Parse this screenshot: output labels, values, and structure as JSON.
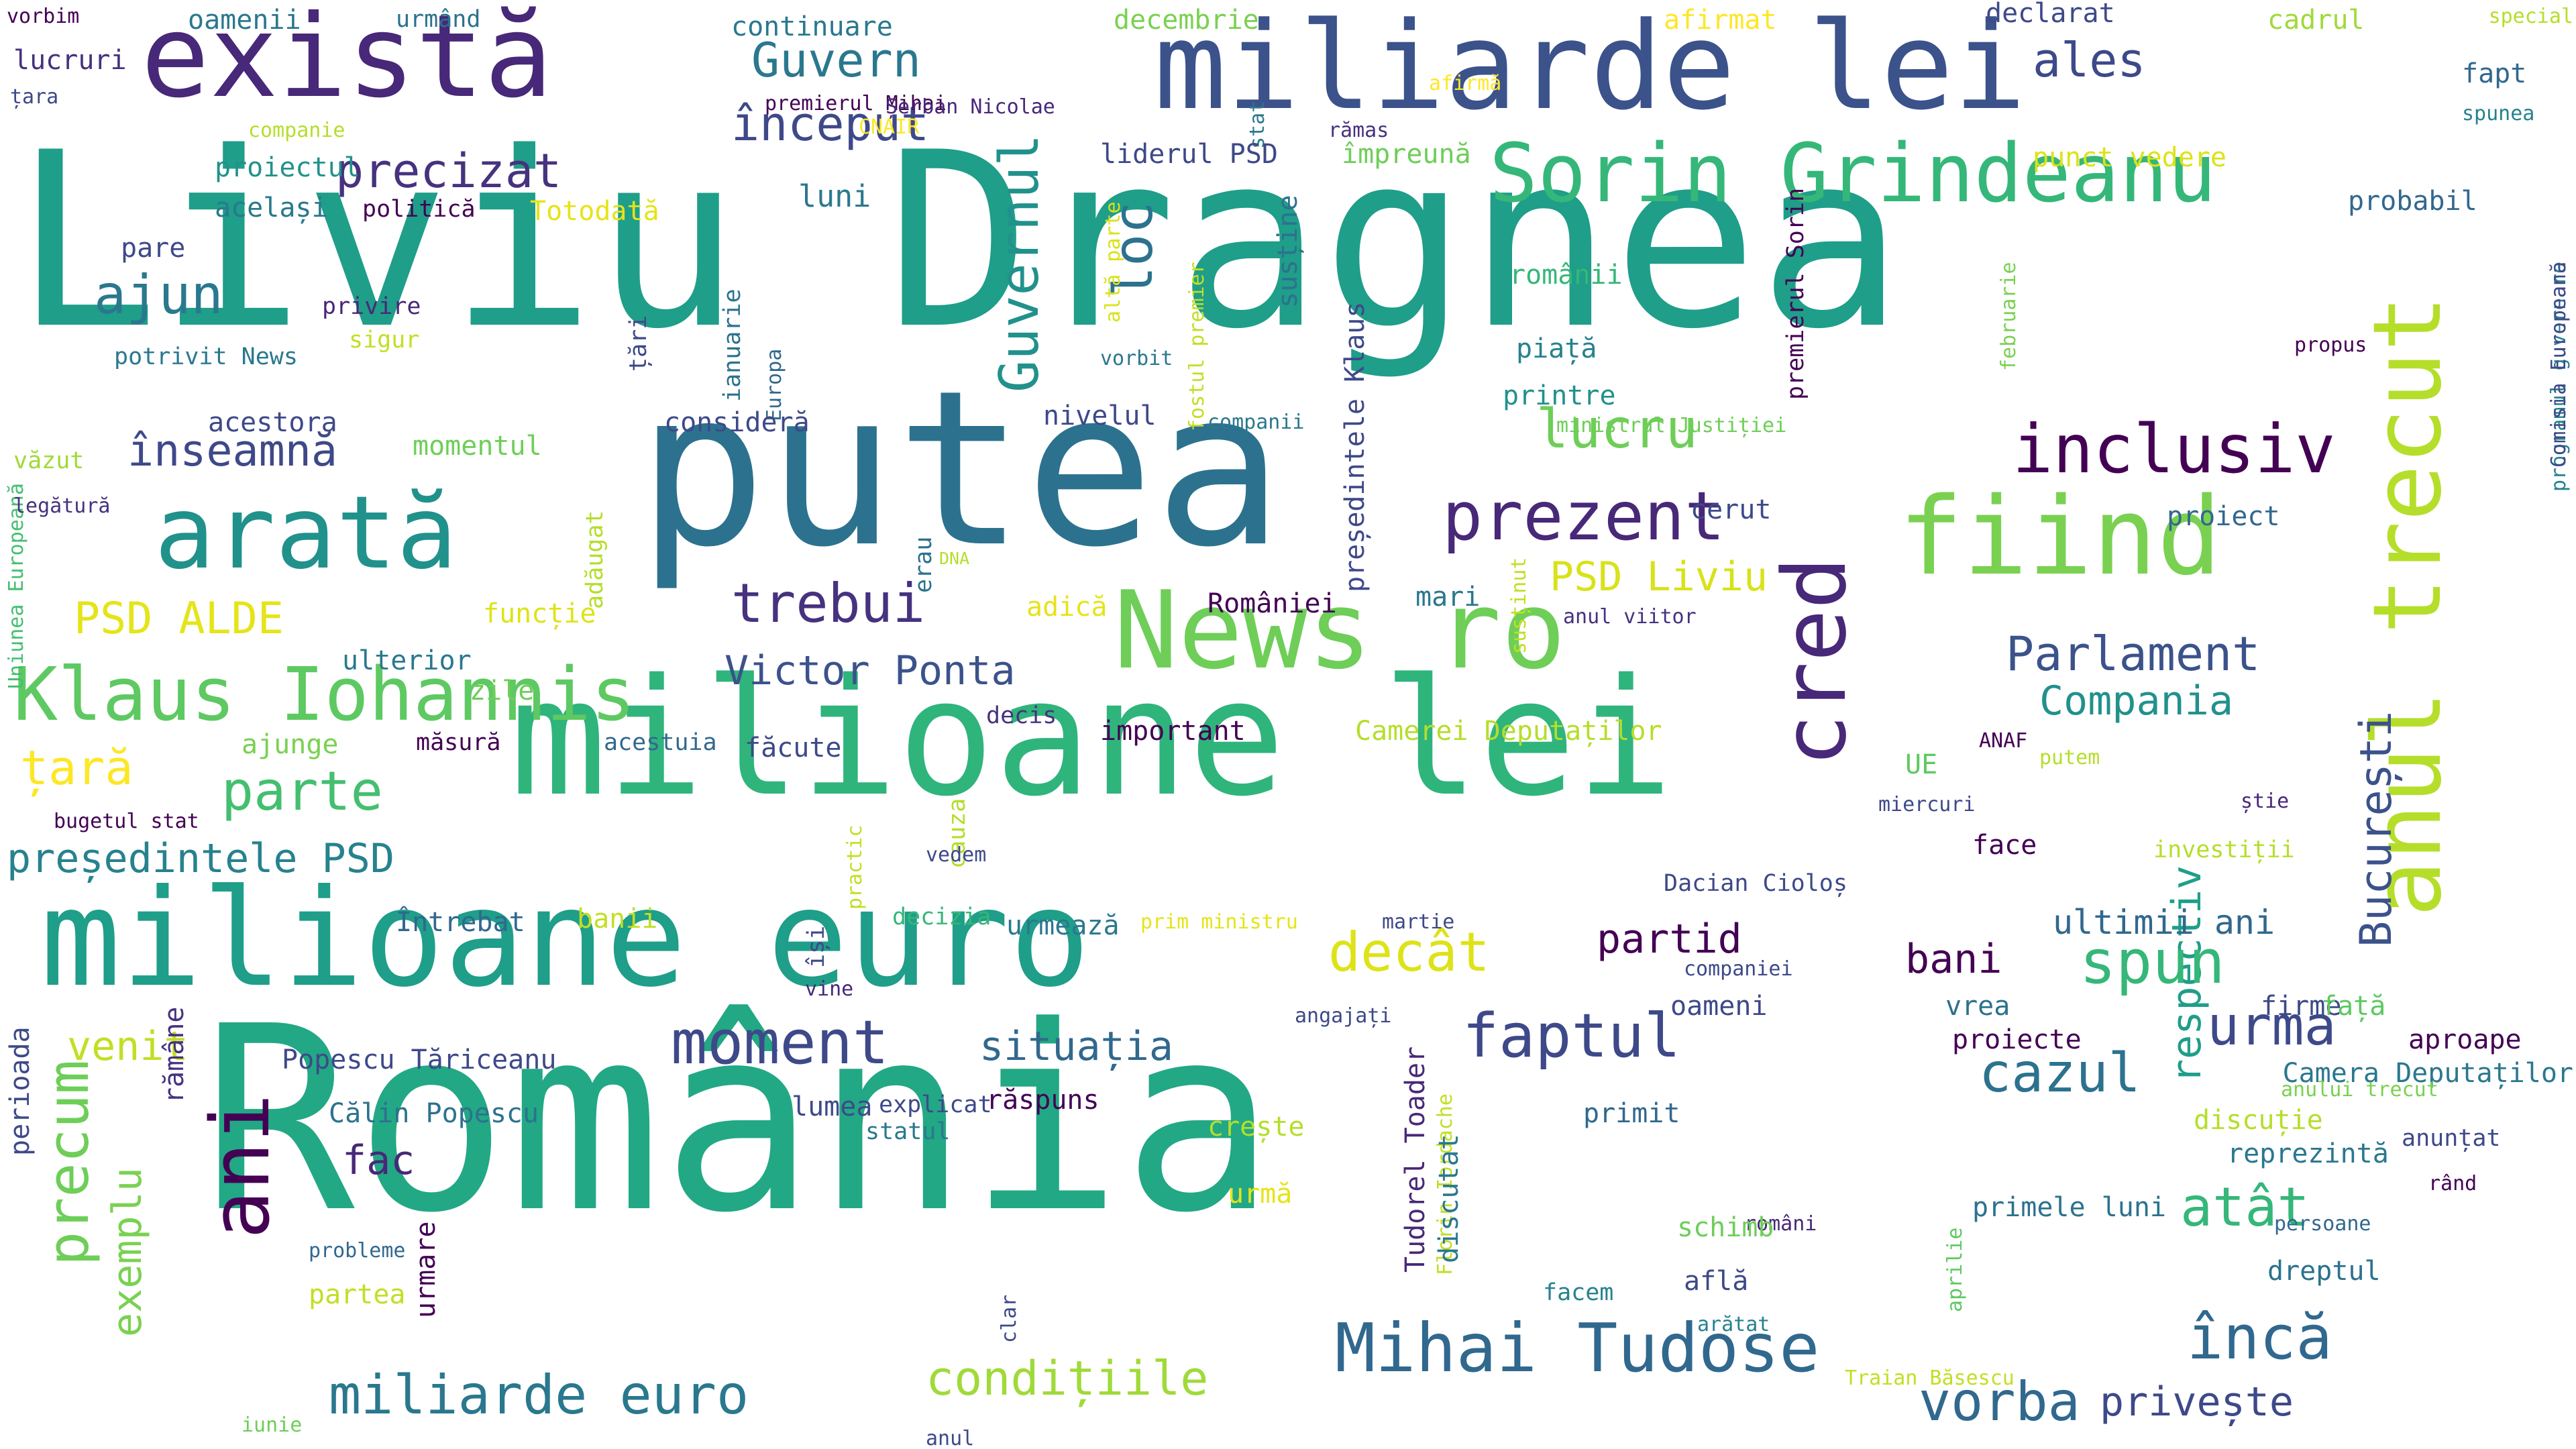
{
  "palette": [
    "#440154",
    "#482878",
    "#3e4989",
    "#31688e",
    "#26828e",
    "#1f9e89",
    "#35b779",
    "#6ece58",
    "#b5de2b",
    "#fde725"
  ],
  "words": [
    {
      "text": "Liviu Dragnea",
      "color": "#1f9e89"
    },
    {
      "text": "România",
      "color": "#22a884"
    },
    {
      "text": "milioane lei",
      "color": "#2fb47c"
    },
    {
      "text": "putea",
      "color": "#2c728e"
    },
    {
      "text": "miliarde lei",
      "color": "#3b528b"
    },
    {
      "text": "News ro",
      "color": "#6ece58"
    },
    {
      "text": "există",
      "color": "#482878"
    },
    {
      "text": "milioane euro",
      "color": "#1f9e89"
    },
    {
      "text": "arată",
      "color": "#21918c"
    },
    {
      "text": "anul trecut",
      "color": "#b5de2b"
    },
    {
      "text": "ani",
      "color": "#440154"
    },
    {
      "text": "fiind",
      "color": "#7ad151"
    },
    {
      "text": "cred",
      "color": "#482878"
    },
    {
      "text": "Sorin Grindeanu",
      "color": "#35b779"
    },
    {
      "text": "Klaus Iohannis",
      "color": "#5ec962"
    },
    {
      "text": "Mihai Tudose",
      "color": "#31688e"
    },
    {
      "text": "miliarde euro",
      "color": "#2a788e"
    },
    {
      "text": "condițiile",
      "color": "#a0da39"
    },
    {
      "text": "moment",
      "color": "#3e4989"
    },
    {
      "text": "precum",
      "color": "#6ece58"
    },
    {
      "text": "inclusiv",
      "color": "#440154"
    },
    {
      "text": "București",
      "color": "#3b528b"
    },
    {
      "text": "respectiv",
      "color": "#1f9e89"
    },
    {
      "text": "atât",
      "color": "#35b779"
    },
    {
      "text": "prezent",
      "color": "#482878"
    },
    {
      "text": "Guvernul",
      "color": "#21918c"
    },
    {
      "text": "faptul",
      "color": "#3e4989"
    },
    {
      "text": "spun",
      "color": "#35b779"
    },
    {
      "text": "încă",
      "color": "#31688e"
    },
    {
      "text": "urma",
      "color": "#3e4989"
    },
    {
      "text": "trebui",
      "color": "#46327e"
    },
    {
      "text": "parte",
      "color": "#44bf70"
    },
    {
      "text": "precizat",
      "color": "#46327e"
    },
    {
      "text": "ajun",
      "color": "#2a788e"
    },
    {
      "text": "înseamnă",
      "color": "#3e4989"
    },
    {
      "text": "loc",
      "color": "#2c728e"
    },
    {
      "text": "decât",
      "color": "#dde318"
    },
    {
      "text": "Parlament",
      "color": "#3b528b"
    },
    {
      "text": "Compania",
      "color": "#21918c"
    },
    {
      "text": "cazul",
      "color": "#2c728e"
    },
    {
      "text": "lucru",
      "color": "#6ece58"
    },
    {
      "text": "început",
      "color": "#3e4989"
    },
    {
      "text": "Guvern",
      "color": "#2a788e"
    },
    {
      "text": "ales",
      "color": "#3e4989"
    },
    {
      "text": "vorba",
      "color": "#31688e"
    },
    {
      "text": "privește",
      "color": "#3e4989"
    },
    {
      "text": "exemplu",
      "color": "#7ad151"
    },
    {
      "text": "venit",
      "color": "#c2df23"
    },
    {
      "text": "țară",
      "color": "#fde725"
    },
    {
      "text": "PSD ALDE",
      "color": "#e5e419"
    },
    {
      "text": "Victor Ponta",
      "color": "#3b528b"
    },
    {
      "text": "PSD Liviu",
      "color": "#d8e219"
    },
    {
      "text": "situația",
      "color": "#31688e"
    },
    {
      "text": "partid",
      "color": "#440154"
    },
    {
      "text": "bani",
      "color": "#440154"
    },
    {
      "text": "ultimii ani",
      "color": "#31688e"
    },
    {
      "text": "președintele PSD",
      "color": "#26828e"
    },
    {
      "text": "fac",
      "color": "#482878"
    },
    {
      "text": "luni",
      "color": "#2a788e"
    },
    {
      "text": "continuare",
      "color": "#2a788e"
    },
    {
      "text": "decembrie",
      "color": "#7ad151"
    },
    {
      "text": "afirmat",
      "color": "#fde725"
    },
    {
      "text": "declarat",
      "color": "#3e4989"
    },
    {
      "text": "cadrul",
      "color": "#a0da39"
    },
    {
      "text": "special",
      "color": "#b5de2b"
    },
    {
      "text": "fapt",
      "color": "#31688e"
    },
    {
      "text": "spunea",
      "color": "#26828e"
    },
    {
      "text": "oamenii",
      "color": "#2a788e"
    },
    {
      "text": "urmând",
      "color": "#2c728e"
    },
    {
      "text": "lucruri",
      "color": "#46327e"
    },
    {
      "text": "țara",
      "color": "#3e4989"
    },
    {
      "text": "companie",
      "color": "#b5de2b"
    },
    {
      "text": "premierul Mihai",
      "color": "#440154"
    },
    {
      "text": "Șerban Nicolae",
      "color": "#482878"
    },
    {
      "text": "CNAIR",
      "color": "#fde725"
    },
    {
      "text": "afirmă",
      "color": "#fde725"
    },
    {
      "text": "rămas",
      "color": "#46327e"
    },
    {
      "text": "stat",
      "color": "#2a788e"
    },
    {
      "text": "proiectul",
      "color": "#21918c"
    },
    {
      "text": "același",
      "color": "#2a788e"
    },
    {
      "text": "politică",
      "color": "#440154"
    },
    {
      "text": "Totodată",
      "color": "#e5e419"
    },
    {
      "text": "liderul PSD",
      "color": "#3e4989"
    },
    {
      "text": "împreună",
      "color": "#6ece58"
    },
    {
      "text": "punct vedere",
      "color": "#dde318"
    },
    {
      "text": "probabil",
      "color": "#31688e"
    },
    {
      "text": "pare",
      "color": "#3e4989"
    },
    {
      "text": "privire",
      "color": "#482878"
    },
    {
      "text": "sigur",
      "color": "#c2df23"
    },
    {
      "text": "potrivit News",
      "color": "#2a788e"
    },
    {
      "text": "ianuarie",
      "color": "#2c728e"
    },
    {
      "text": "Europa",
      "color": "#31688e"
    },
    {
      "text": "țări",
      "color": "#3e4989"
    },
    {
      "text": "altă parte",
      "color": "#d8e219"
    },
    {
      "text": "vorbit",
      "color": "#2a788e"
    },
    {
      "text": "fostul premier",
      "color": "#c2df23"
    },
    {
      "text": "susține",
      "color": "#2c728e"
    },
    {
      "text": "președintele Klaus",
      "color": "#3e4989"
    },
    {
      "text": "premierul Sorin",
      "color": "#440154"
    },
    {
      "text": "românii",
      "color": "#35b779"
    },
    {
      "text": "piață",
      "color": "#26828e"
    },
    {
      "text": "printre",
      "color": "#21918c"
    },
    {
      "text": "februarie",
      "color": "#7ad151"
    },
    {
      "text": "propus",
      "color": "#440154"
    },
    {
      "text": "Uniunea Europeană",
      "color": "#44bf70"
    },
    {
      "text": "acestora",
      "color": "#3e4989"
    },
    {
      "text": "văzut",
      "color": "#a0da39"
    },
    {
      "text": "legătură",
      "color": "#46327e"
    },
    {
      "text": "momentul",
      "color": "#6ece58"
    },
    {
      "text": "adăugat",
      "color": "#b5de2b"
    },
    {
      "text": "consideră",
      "color": "#3e4989"
    },
    {
      "text": "nivelul",
      "color": "#3e4989"
    },
    {
      "text": "companii",
      "color": "#2a788e"
    },
    {
      "text": "ministrul Justiției",
      "color": "#6ece58"
    },
    {
      "text": "cerut",
      "color": "#3e4989"
    },
    {
      "text": "proiect",
      "color": "#31688e"
    },
    {
      "text": "programul guvernare",
      "color": "#26828e"
    },
    {
      "text": "Comisia Europeană",
      "color": "#3e4989"
    },
    {
      "text": "erau",
      "color": "#2c728e"
    },
    {
      "text": "DNA",
      "color": "#b5de2b"
    },
    {
      "text": "adică",
      "color": "#e5e419"
    },
    {
      "text": "României",
      "color": "#440154"
    },
    {
      "text": "mari",
      "color": "#2a788e"
    },
    {
      "text": "susținut",
      "color": "#c2df23"
    },
    {
      "text": "anul viitor",
      "color": "#46327e"
    },
    {
      "text": "funcție",
      "color": "#dde318"
    },
    {
      "text": "ulterior",
      "color": "#2a788e"
    },
    {
      "text": "zile",
      "color": "#6ece58"
    },
    {
      "text": "ajunge",
      "color": "#7ad151"
    },
    {
      "text": "măsură",
      "color": "#440154"
    },
    {
      "text": "acestuia",
      "color": "#31688e"
    },
    {
      "text": "decis",
      "color": "#46327e"
    },
    {
      "text": "făcute",
      "color": "#3e4989"
    },
    {
      "text": "important",
      "color": "#440154"
    },
    {
      "text": "Camerei Deputaților",
      "color": "#b5de2b"
    },
    {
      "text": "ANAF",
      "color": "#440154"
    },
    {
      "text": "UE",
      "color": "#5ec962"
    },
    {
      "text": "putem",
      "color": "#b5de2b"
    },
    {
      "text": "bugetul stat",
      "color": "#440154"
    },
    {
      "text": "practic",
      "color": "#c2df23"
    },
    {
      "text": "cauza",
      "color": "#b5de2b"
    },
    {
      "text": "miercuri",
      "color": "#3e4989"
    },
    {
      "text": "face",
      "color": "#440154"
    },
    {
      "text": "știe",
      "color": "#482878"
    },
    {
      "text": "investiții",
      "color": "#b5de2b"
    },
    {
      "text": "vedem",
      "color": "#3e4989"
    },
    {
      "text": "Dacian Cioloș",
      "color": "#3e4989"
    },
    {
      "text": "Întrebat",
      "color": "#31688e"
    },
    {
      "text": "banii",
      "color": "#c2df23"
    },
    {
      "text": "decizia",
      "color": "#35b779"
    },
    {
      "text": "urmează",
      "color": "#2a788e"
    },
    {
      "text": "prim ministru",
      "color": "#e5e419"
    },
    {
      "text": "martie",
      "color": "#3e4989"
    },
    {
      "text": "își",
      "color": "#3e4989"
    },
    {
      "text": "vine",
      "color": "#482878"
    },
    {
      "text": "companiei",
      "color": "#3e4989"
    },
    {
      "text": "oameni",
      "color": "#3e4989"
    },
    {
      "text": "vrea",
      "color": "#2c728e"
    },
    {
      "text": "firme",
      "color": "#3e4989"
    },
    {
      "text": "față",
      "color": "#5ec962"
    },
    {
      "text": "angajați",
      "color": "#3e4989"
    },
    {
      "text": "proiecte",
      "color": "#440154"
    },
    {
      "text": "aproape",
      "color": "#440154"
    },
    {
      "text": "Camera Deputaților",
      "color": "#2a788e"
    },
    {
      "text": "perioada",
      "color": "#3e4989"
    },
    {
      "text": "rămâne",
      "color": "#46327e"
    },
    {
      "text": "Popescu Tăriceanu",
      "color": "#3e4989"
    },
    {
      "text": "Călin Popescu",
      "color": "#2c728e"
    },
    {
      "text": "răspuns",
      "color": "#440154"
    },
    {
      "text": "explicat",
      "color": "#3e4989"
    },
    {
      "text": "lumea",
      "color": "#3e4989"
    },
    {
      "text": "statul",
      "color": "#2a788e"
    },
    {
      "text": "crește",
      "color": "#b5de2b"
    },
    {
      "text": "Tudorel Toader",
      "color": "#482878"
    },
    {
      "text": "Florin Iordache",
      "color": "#c2df23"
    },
    {
      "text": "discutat",
      "color": "#2a788e"
    },
    {
      "text": "primit",
      "color": "#31688e"
    },
    {
      "text": "anului trecut",
      "color": "#7ad151"
    },
    {
      "text": "discuție",
      "color": "#b5de2b"
    },
    {
      "text": "reprezintă",
      "color": "#2a788e"
    },
    {
      "text": "anunțat",
      "color": "#3e4989"
    },
    {
      "text": "rând",
      "color": "#440154"
    },
    {
      "text": "dreptul",
      "color": "#2c728e"
    },
    {
      "text": "persoane",
      "color": "#31688e"
    },
    {
      "text": "aprilie",
      "color": "#5ec962"
    },
    {
      "text": "primele luni",
      "color": "#2c728e"
    },
    {
      "text": "români",
      "color": "#482878"
    },
    {
      "text": "urmă",
      "color": "#e5e419"
    },
    {
      "text": "probleme",
      "color": "#31688e"
    },
    {
      "text": "urmare",
      "color": "#440154"
    },
    {
      "text": "partea",
      "color": "#c2df23"
    },
    {
      "text": "clar",
      "color": "#3e4989"
    },
    {
      "text": "schimb",
      "color": "#6ece58"
    },
    {
      "text": "află",
      "color": "#3e4989"
    },
    {
      "text": "arătat",
      "color": "#26828e"
    },
    {
      "text": "facem",
      "color": "#26828e"
    },
    {
      "text": "iunie",
      "color": "#6ece58"
    },
    {
      "text": "anul",
      "color": "#3e4989"
    },
    {
      "text": "Traian Băsescu",
      "color": "#c2df23"
    },
    {
      "text": "vorbim",
      "color": "#440154"
    }
  ]
}
